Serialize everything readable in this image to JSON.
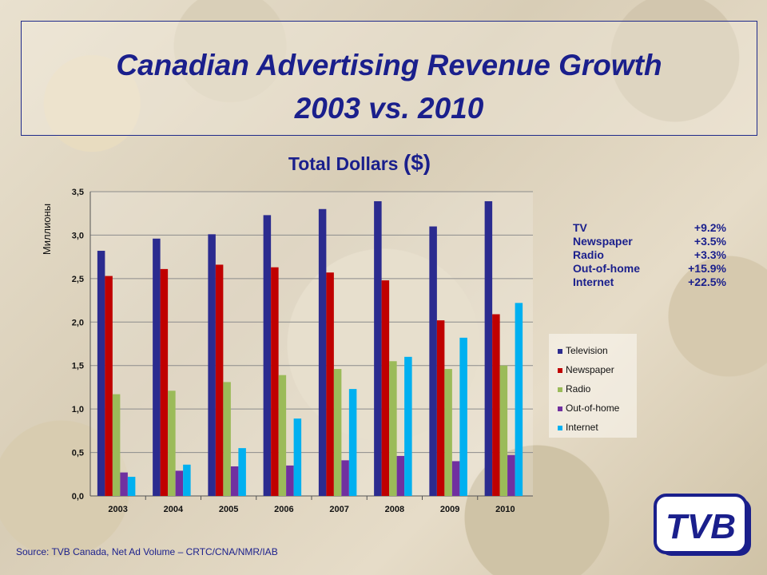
{
  "title_line1": "Canadian Advertising Revenue Growth",
  "title_line2": "2003 vs. 2010",
  "subtitle_text": "Total Dollars",
  "subtitle_paren": "($)",
  "growth": [
    {
      "label": "TV",
      "value": "+9.2%"
    },
    {
      "label": "Newspaper",
      "value": "+3.5%"
    },
    {
      "label": "Radio",
      "value": "+3.3%"
    },
    {
      "label": "Out-of-home",
      "value": "+15.9%"
    },
    {
      "label": "Internet",
      "value": "+22.5%"
    }
  ],
  "source": "Source: TVB Canada, Net Ad Volume – CRTC/CNA/NMR/IAB",
  "logo_text": "TVB",
  "colors": {
    "Television": "#2b2b8f",
    "Newspaper": "#c00000",
    "Radio": "#9bbb59",
    "Out-of-home": "#7030a0",
    "Internet": "#00b0f0"
  },
  "chart_data": {
    "type": "bar",
    "title": "Total Dollars ($)",
    "ylabel": "Миллионы",
    "xlabel": "",
    "categories": [
      "2003",
      "2004",
      "2005",
      "2006",
      "2007",
      "2008",
      "2009",
      "2010"
    ],
    "ylim": [
      0,
      3.5
    ],
    "yticks": [
      "0,0",
      "0,5",
      "1,0",
      "1,5",
      "2,0",
      "2,5",
      "3,0",
      "3,5"
    ],
    "grid": true,
    "legend_position": "right",
    "series": [
      {
        "name": "Television",
        "values": [
          2.82,
          2.96,
          3.01,
          3.23,
          3.3,
          3.39,
          3.1,
          3.39
        ]
      },
      {
        "name": "Newspaper",
        "values": [
          2.53,
          2.61,
          2.66,
          2.63,
          2.57,
          2.48,
          2.02,
          2.09
        ]
      },
      {
        "name": "Radio",
        "values": [
          1.17,
          1.21,
          1.31,
          1.39,
          1.46,
          1.55,
          1.46,
          1.5
        ]
      },
      {
        "name": "Out-of-home",
        "values": [
          0.27,
          0.29,
          0.34,
          0.35,
          0.41,
          0.46,
          0.4,
          0.47
        ]
      },
      {
        "name": "Internet",
        "values": [
          0.22,
          0.36,
          0.55,
          0.89,
          1.23,
          1.6,
          1.82,
          2.22
        ]
      }
    ]
  }
}
